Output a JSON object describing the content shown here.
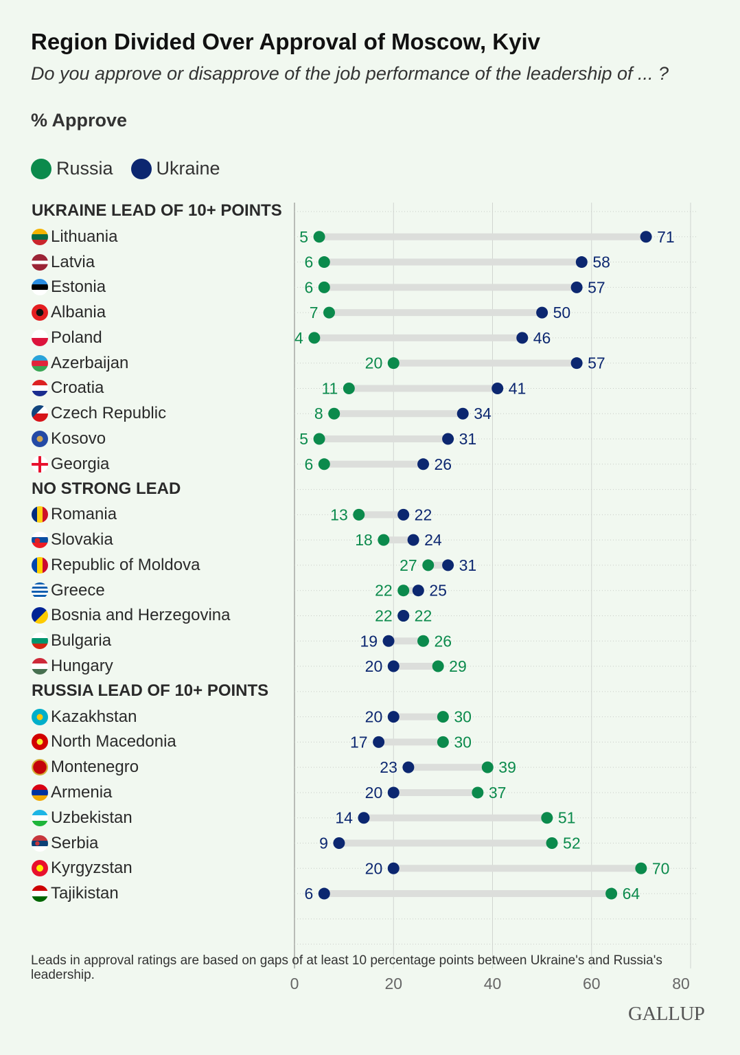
{
  "title": "Region Divided Over Approval of Moscow, Kyiv",
  "subtitle": "Do you approve or disapprove of the job performance of the leadership of ... ?",
  "unit": "% Approve",
  "note": "Leads in approval ratings are based on gaps of at least 10 percentage points between Ukraine's and Russia's leadership.",
  "logo": "GALLUP",
  "colors": {
    "russia": "#0b8a4c",
    "ukraine": "#0c2770",
    "bar": "#dcdedb",
    "grid": "#d0d4cf"
  },
  "chart_data": {
    "type": "dumbbell",
    "title": "Region Divided Over Approval of Moscow, Kyiv",
    "xlim": [
      0,
      80
    ],
    "xticks": [
      0,
      20,
      40,
      60,
      80
    ],
    "grid": true,
    "legend_position": "top-left",
    "series": [
      {
        "name": "Russia",
        "color": "#0b8a4c"
      },
      {
        "name": "Ukraine",
        "color": "#0c2770"
      }
    ],
    "groups": [
      {
        "label": "UKRAINE LEAD OF 10+ POINTS",
        "rows": [
          {
            "country": "Lithuania",
            "russia": 5,
            "ukraine": 71
          },
          {
            "country": "Latvia",
            "russia": 6,
            "ukraine": 58
          },
          {
            "country": "Estonia",
            "russia": 6,
            "ukraine": 57
          },
          {
            "country": "Albania",
            "russia": 7,
            "ukraine": 50
          },
          {
            "country": "Poland",
            "russia": 4,
            "ukraine": 46
          },
          {
            "country": "Azerbaijan",
            "russia": 20,
            "ukraine": 57
          },
          {
            "country": "Croatia",
            "russia": 11,
            "ukraine": 41
          },
          {
            "country": "Czech Republic",
            "russia": 8,
            "ukraine": 34
          },
          {
            "country": "Kosovo",
            "russia": 5,
            "ukraine": 31
          },
          {
            "country": "Georgia",
            "russia": 6,
            "ukraine": 26
          }
        ]
      },
      {
        "label": "NO STRONG LEAD",
        "rows": [
          {
            "country": "Romania",
            "russia": 13,
            "ukraine": 22
          },
          {
            "country": "Slovakia",
            "russia": 18,
            "ukraine": 24
          },
          {
            "country": "Republic of Moldova",
            "russia": 27,
            "ukraine": 31
          },
          {
            "country": "Greece",
            "russia": 22,
            "ukraine": 25
          },
          {
            "country": "Bosnia and Herzegovina",
            "russia": 22,
            "ukraine": 22
          },
          {
            "country": "Bulgaria",
            "russia": 26,
            "ukraine": 19
          },
          {
            "country": "Hungary",
            "russia": 29,
            "ukraine": 20
          }
        ]
      },
      {
        "label": "RUSSIA LEAD OF 10+ POINTS",
        "rows": [
          {
            "country": "Kazakhstan",
            "russia": 30,
            "ukraine": 20
          },
          {
            "country": "North Macedonia",
            "russia": 30,
            "ukraine": 17
          },
          {
            "country": "Montenegro",
            "russia": 39,
            "ukraine": 23
          },
          {
            "country": "Armenia",
            "russia": 37,
            "ukraine": 20
          },
          {
            "country": "Uzbekistan",
            "russia": 51,
            "ukraine": 14
          },
          {
            "country": "Serbia",
            "russia": 52,
            "ukraine": 9
          },
          {
            "country": "Kyrgyzstan",
            "russia": 70,
            "ukraine": 20
          },
          {
            "country": "Tajikistan",
            "russia": 64,
            "ukraine": 6
          }
        ]
      }
    ]
  }
}
